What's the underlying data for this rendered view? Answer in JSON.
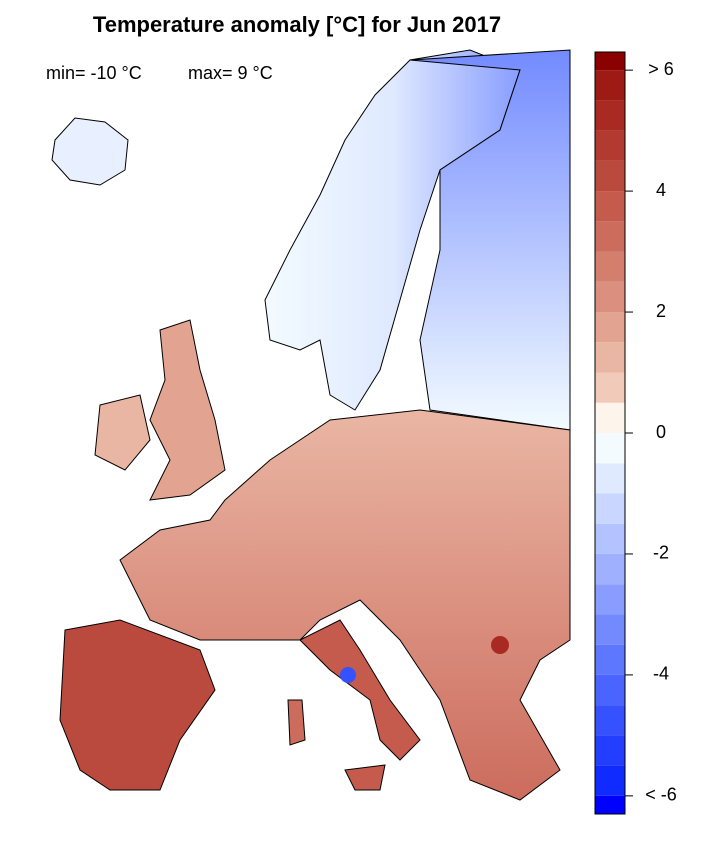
{
  "title": "Temperature anomaly [°C] for Jun 2017",
  "stats": {
    "min": "min= -10 °C",
    "max": "max= 9 °C"
  },
  "colorbar": {
    "levels": [
      -6.3,
      -6,
      -5.5,
      -5,
      -4.5,
      -4,
      -3.5,
      -3,
      -2.5,
      -2,
      -1.5,
      -1,
      -0.5,
      0,
      0.5,
      1,
      1.5,
      2,
      2.5,
      3,
      3.5,
      4,
      4.5,
      5,
      5.5,
      6,
      6.3
    ],
    "colors": [
      "#0000ff",
      "#102bff",
      "#233eff",
      "#3651ff",
      "#4a64ff",
      "#5e77ff",
      "#738aff",
      "#889dff",
      "#9eb0ff",
      "#b3c3ff",
      "#c9d6ff",
      "#dfe9ff",
      "#f3fbff",
      "#fdf5ec",
      "#f2cab9",
      "#eab6a4",
      "#e3a391",
      "#db907f",
      "#d47e6e",
      "#cc6c5d",
      "#c45b4d",
      "#bb4a3e",
      "#b23a30",
      "#a82a22",
      "#9e1a14",
      "#8b0000"
    ],
    "ylim": [
      -6.3,
      6.3
    ],
    "ticks": [
      {
        "value": 6,
        "label": "> 6"
      },
      4,
      2,
      0,
      -2,
      -4,
      {
        "value": -6,
        "label": "< -6"
      }
    ]
  }
}
